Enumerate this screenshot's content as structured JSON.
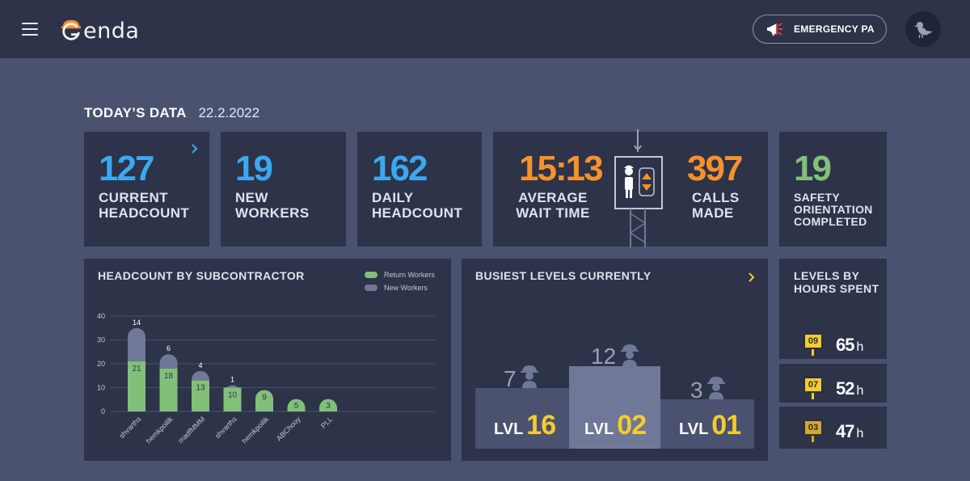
{
  "header": {
    "logo_text": "enda",
    "emergency_label": "EMERGENCY PA"
  },
  "today": {
    "title": "TODAY’S DATA",
    "date": "22.2.2022"
  },
  "stats": {
    "current_headcount": {
      "value": "127",
      "label1": "CURRENT",
      "label2": "HEADCOUNT"
    },
    "new_workers": {
      "value": "19",
      "label1": "NEW",
      "label2": "WORKERS"
    },
    "daily_headcount": {
      "value": "162",
      "label1": "DAILY",
      "label2": "HEADCOUNT"
    },
    "wait_time": {
      "value": "15:13",
      "label1": "AVERAGE",
      "label2": "WAIT TIME"
    },
    "calls": {
      "value": "397",
      "label1": "CALLS",
      "label2": "MADE"
    },
    "safety": {
      "value": "19",
      "label1": "SAFETY",
      "label2": "ORIENTATION",
      "label3": "COMPLETED"
    }
  },
  "headcount_chart": {
    "title": "HEADCOUNT BY SUBCONTRACTOR",
    "legend_return": "Return Workers",
    "legend_new": "New Workers"
  },
  "busiest": {
    "title": "BUSIEST LEVELS CURRENTLY",
    "levels": [
      {
        "prefix": "LVL",
        "level": "16",
        "count": "7"
      },
      {
        "prefix": "LVL",
        "level": "02",
        "count": "12"
      },
      {
        "prefix": "LVL",
        "level": "01",
        "count": "3"
      }
    ]
  },
  "hours": {
    "title1": "LEVELS BY",
    "title2": "HOURS SPENT",
    "rows": [
      {
        "level": "09",
        "value": "65",
        "unit": "h"
      },
      {
        "level": "07",
        "value": "52",
        "unit": "h"
      },
      {
        "level": "03",
        "value": "47",
        "unit": "h"
      }
    ]
  },
  "colors": {
    "return": "#82c07a",
    "new": "#6f7896",
    "accent_blue": "#3ba8f0",
    "accent_orange": "#f5922b",
    "accent_yellow": "#f5cb2e"
  },
  "chart_data": {
    "type": "bar",
    "stacked": true,
    "categories": [
      "shvarths",
      "hemkpoilik",
      "madfMMM",
      "shvarths",
      "hemkpoilik",
      "ABChooy",
      "PLL"
    ],
    "series": [
      {
        "name": "Return Workers",
        "values": [
          21,
          18,
          13,
          10,
          9,
          5,
          3
        ]
      },
      {
        "name": "New Workers",
        "values": [
          14,
          6,
          4,
          1,
          0,
          0,
          0
        ]
      }
    ],
    "ylim": [
      0,
      40
    ],
    "yticks": [
      0,
      10,
      20,
      30,
      40
    ],
    "grid": true,
    "legend": "top-right"
  }
}
